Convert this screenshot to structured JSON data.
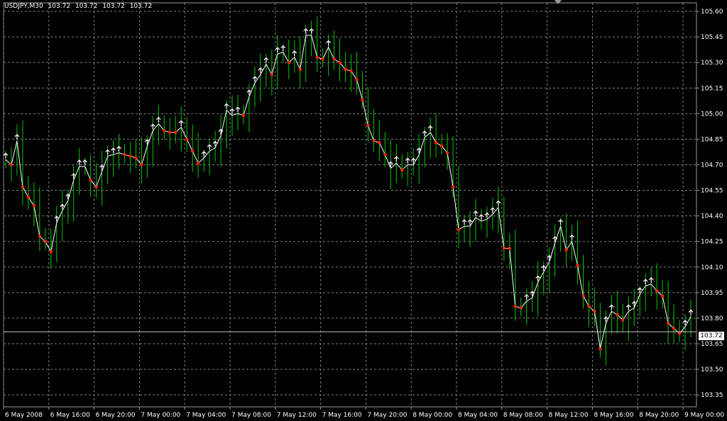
{
  "header": {
    "symbol": "USDJPY,M30",
    "open": "103.72",
    "high": "103.72",
    "low": "103.72",
    "close": "103.72"
  },
  "current_price_label": "103.72",
  "colors": {
    "background": "#000000",
    "grid": "#7f7f7f",
    "candle": "#00c800",
    "line": "#ffffff",
    "up_arrow": "#ffffff",
    "down_dot": "#ff2200",
    "axis_text": "#ffffff"
  },
  "chart_data": {
    "type": "line",
    "ylim": [
      103.28,
      105.65
    ],
    "grid": true,
    "y_ticks": [
      "105.60",
      "105.45",
      "105.30",
      "105.15",
      "105.00",
      "104.85",
      "104.70",
      "104.55",
      "104.40",
      "104.25",
      "104.10",
      "103.95",
      "103.80",
      "103.65",
      "103.50",
      "103.35"
    ],
    "x_tick_labels": [
      "6 May 2008",
      "6 May 16:00",
      "6 May 20:00",
      "7 May 00:00",
      "7 May 04:00",
      "7 May 08:00",
      "7 May 12:00",
      "7 May 16:00",
      "7 May 20:00",
      "8 May 00:00",
      "8 May 04:00",
      "8 May 08:00",
      "8 May 12:00",
      "8 May 16:00",
      "8 May 20:00",
      "9 May 00:00"
    ],
    "x_tick_bars": [
      0,
      8,
      16,
      24,
      32,
      40,
      48,
      56,
      64,
      72,
      80,
      88,
      96,
      104,
      112,
      120
    ],
    "bars_total": 122,
    "current_price": 103.72,
    "series": [
      {
        "close": [
          104.73,
          104.7,
          104.84,
          104.57,
          104.51,
          104.46,
          104.28,
          104.25,
          104.19,
          104.36,
          104.43,
          104.49,
          104.61,
          104.69,
          104.69,
          104.61,
          104.57,
          104.66,
          104.75,
          104.76,
          104.77,
          104.76,
          104.75,
          104.74,
          104.7,
          104.81,
          104.9,
          104.94,
          104.9,
          104.89,
          104.89,
          104.92,
          104.85,
          104.78,
          104.71,
          104.74,
          104.78,
          104.8,
          104.87,
          105.02,
          104.99,
          105.0,
          104.99,
          105.1,
          105.18,
          105.23,
          105.29,
          105.23,
          105.35,
          105.36,
          105.3,
          105.33,
          105.26,
          105.46,
          105.46,
          105.33,
          105.32,
          105.39,
          105.32,
          105.3,
          105.26,
          105.25,
          105.2,
          105.08,
          104.93,
          104.84,
          104.83,
          104.76,
          104.68,
          104.71,
          104.67,
          104.7,
          104.7,
          104.76,
          104.86,
          104.89,
          104.83,
          104.81,
          104.77,
          104.57,
          104.32,
          104.34,
          104.34,
          104.39,
          104.37,
          104.38,
          104.41,
          104.45,
          104.21,
          104.21,
          103.87,
          103.86,
          103.9,
          103.92,
          104.01,
          104.07,
          104.13,
          104.24,
          104.34,
          104.2,
          104.25,
          104.11,
          103.93,
          103.87,
          103.84,
          103.62,
          103.77,
          103.84,
          103.82,
          103.79,
          103.84,
          103.86,
          103.94,
          103.99,
          104.0,
          103.96,
          103.93,
          103.77,
          103.74,
          103.71,
          103.75,
          103.81
        ],
        "signals": [
          "up",
          "down",
          "up",
          "down",
          "down",
          "down",
          "down",
          "down",
          "down",
          "up",
          "up",
          "up",
          "up",
          "up",
          "up",
          "down",
          "down",
          "up",
          "up",
          "up",
          "up",
          "down",
          "down",
          "down",
          "down",
          "up",
          "up",
          "up",
          "down",
          "down",
          "down",
          "up",
          "down",
          "down",
          "down",
          "up",
          "up",
          "up",
          "up",
          "up",
          "up",
          "up",
          "down",
          "up",
          "up",
          "up",
          "up",
          "down",
          "up",
          "up",
          "down",
          "up",
          "down",
          "up",
          "up",
          "down",
          "down",
          "up",
          "down",
          "down",
          "down",
          "down",
          "down",
          "down",
          "down",
          "down",
          "down",
          "down",
          "up",
          "up",
          "down",
          "up",
          "up",
          "up",
          "up",
          "up",
          "down",
          "down",
          "down",
          "down",
          "down",
          "up",
          "up",
          "up",
          "up",
          "up",
          "up",
          "up",
          "down",
          "down",
          "down",
          "down",
          "up",
          "up",
          "up",
          "up",
          "up",
          "up",
          "up",
          "down",
          "up",
          "down",
          "down",
          "down",
          "down",
          "down",
          "up",
          "up",
          "down",
          "down",
          "up",
          "up",
          "up",
          "up",
          "up",
          "down",
          "down",
          "down",
          "down",
          "down",
          "up",
          "up"
        ]
      }
    ]
  }
}
